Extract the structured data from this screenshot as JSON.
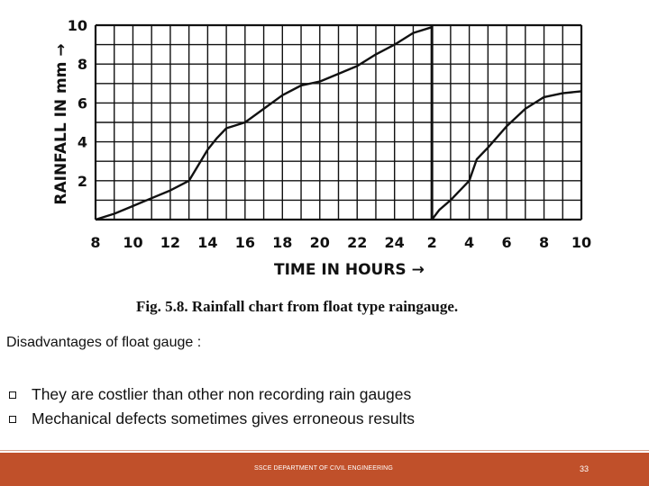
{
  "chart_data": {
    "type": "line",
    "caption": "Fig. 5.8. Rainfall chart from float type raingauge.",
    "xlabel": "TIME IN HOURS →",
    "ylabel": "RAINFALL IN mm →",
    "x_tick_labels": [
      "8",
      "10",
      "12",
      "14",
      "16",
      "18",
      "20",
      "22",
      "24",
      "2",
      "4",
      "6",
      "8",
      "10"
    ],
    "y_tick_labels": [
      "2",
      "4",
      "6",
      "8",
      "10"
    ],
    "ylim": [
      0,
      10
    ],
    "x_unit": "hours",
    "grid": true,
    "series": [
      {
        "x": [
          8,
          9,
          10,
          11,
          12,
          13,
          14,
          14.5,
          15,
          16,
          17,
          18,
          19,
          20,
          21,
          22,
          23,
          24,
          25,
          26
        ],
        "y": [
          0,
          0.3,
          0.7,
          1.1,
          1.5,
          2.0,
          3.6,
          4.2,
          4.7,
          5.0,
          5.7,
          6.4,
          6.9,
          7.1,
          7.5,
          7.9,
          8.5,
          9.0,
          9.6,
          9.9
        ]
      },
      {
        "x": [
          26,
          26.4,
          27,
          28,
          28.4,
          29,
          30,
          31,
          32,
          33,
          34
        ],
        "y": [
          0,
          0.5,
          1.0,
          2.0,
          3.1,
          3.7,
          4.8,
          5.7,
          6.3,
          6.5,
          6.6
        ]
      }
    ]
  },
  "slide": {
    "heading": "Disadvantages of float gauge :",
    "bullets": [
      "They are costlier than other non recording rain gauges",
      "Mechanical defects  sometimes gives erroneous results"
    ]
  },
  "footer": {
    "text": "SSCE DEPARTMENT OF CIVIL ENGINEERING",
    "page_number": "33",
    "color": "#c0502a"
  }
}
